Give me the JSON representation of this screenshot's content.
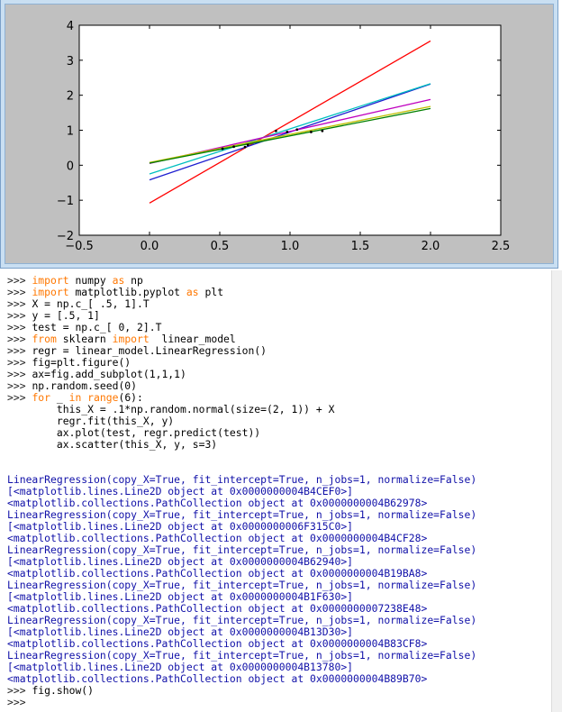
{
  "figure": {
    "yticks": [
      "4",
      "3",
      "2",
      "1",
      "0",
      "−1",
      "−2"
    ],
    "xticks": [
      "−0.5",
      "0.0",
      "0.5",
      "1.0",
      "1.5",
      "2.0",
      "2.5"
    ],
    "colors": {
      "blue": "#1f1fd0",
      "green": "#008000",
      "red": "#ff0000",
      "cyan": "#00bfbf",
      "magenta": "#bf00bf",
      "yellow": "#bfbf00"
    }
  },
  "chart_data": {
    "type": "line",
    "xlim": [
      -0.5,
      2.5
    ],
    "ylim": [
      -2,
      4
    ],
    "grid": false,
    "series": [
      {
        "color": "#ff0000",
        "x": [
          0,
          2
        ],
        "y": [
          -1.08,
          3.55
        ]
      },
      {
        "color": "#1f1fd0",
        "x": [
          0,
          2
        ],
        "y": [
          -0.42,
          2.32
        ]
      },
      {
        "color": "#00bfbf",
        "x": [
          0,
          2
        ],
        "y": [
          -0.25,
          2.33
        ]
      },
      {
        "color": "#bf00bf",
        "x": [
          0,
          2
        ],
        "y": [
          0.05,
          1.88
        ]
      },
      {
        "color": "#bfbf00",
        "x": [
          0,
          2
        ],
        "y": [
          0.08,
          1.68
        ]
      },
      {
        "color": "#008000",
        "x": [
          0,
          2
        ],
        "y": [
          0.06,
          1.62
        ]
      }
    ],
    "points": [
      {
        "x": 0.52,
        "y": 0.47
      },
      {
        "x": 0.6,
        "y": 0.53
      },
      {
        "x": 0.68,
        "y": 0.52
      },
      {
        "x": 0.7,
        "y": 0.58
      },
      {
        "x": 0.9,
        "y": 0.98
      },
      {
        "x": 0.98,
        "y": 0.95
      },
      {
        "x": 1.05,
        "y": 1.02
      },
      {
        "x": 1.15,
        "y": 0.95
      },
      {
        "x": 1.23,
        "y": 0.98
      }
    ]
  },
  "console": {
    "lines": [
      {
        "prompt": ">>> ",
        "parts": [
          {
            "t": "kw",
            "v": "import"
          },
          {
            "t": "code",
            "v": " numpy "
          },
          {
            "t": "kw",
            "v": "as"
          },
          {
            "t": "code",
            "v": " np"
          }
        ]
      },
      {
        "prompt": ">>> ",
        "parts": [
          {
            "t": "kw",
            "v": "import"
          },
          {
            "t": "code",
            "v": " matplotlib.pyplot "
          },
          {
            "t": "kw",
            "v": "as"
          },
          {
            "t": "code",
            "v": " plt"
          }
        ]
      },
      {
        "prompt": ">>> ",
        "parts": [
          {
            "t": "code",
            "v": "X = np.c_[ .5, 1].T"
          }
        ]
      },
      {
        "prompt": ">>> ",
        "parts": [
          {
            "t": "code",
            "v": "y = [.5, 1]"
          }
        ]
      },
      {
        "prompt": ">>> ",
        "parts": [
          {
            "t": "code",
            "v": "test = np.c_[ 0, 2].T"
          }
        ]
      },
      {
        "prompt": ">>> ",
        "parts": [
          {
            "t": "kw",
            "v": "from"
          },
          {
            "t": "code",
            "v": " sklearn "
          },
          {
            "t": "kw",
            "v": "import"
          },
          {
            "t": "code",
            "v": "  linear_model"
          }
        ]
      },
      {
        "prompt": ">>> ",
        "parts": [
          {
            "t": "code",
            "v": "regr = linear_model.LinearRegression()"
          }
        ]
      },
      {
        "prompt": ">>> ",
        "parts": [
          {
            "t": "code",
            "v": "fig=plt.figure()"
          }
        ]
      },
      {
        "prompt": ">>> ",
        "parts": [
          {
            "t": "code",
            "v": "ax=fig.add_subplot(1,1,1)"
          }
        ]
      },
      {
        "prompt": ">>> ",
        "parts": [
          {
            "t": "code",
            "v": "np.random.seed(0)"
          }
        ]
      },
      {
        "prompt": ">>> ",
        "parts": [
          {
            "t": "kw",
            "v": "for"
          },
          {
            "t": "code",
            "v": " _ "
          },
          {
            "t": "kw",
            "v": "in"
          },
          {
            "t": "code",
            "v": " "
          },
          {
            "t": "kw",
            "v": "range"
          },
          {
            "t": "code",
            "v": "(6):"
          }
        ]
      },
      {
        "prompt": "",
        "parts": [
          {
            "t": "code",
            "v": "        this_X = .1*np.random.normal(size=(2, 1)) + X"
          }
        ]
      },
      {
        "prompt": "",
        "parts": [
          {
            "t": "code",
            "v": "        regr.fit(this_X, y)"
          }
        ]
      },
      {
        "prompt": "",
        "parts": [
          {
            "t": "code",
            "v": "        ax.plot(test, regr.predict(test))"
          }
        ]
      },
      {
        "prompt": "",
        "parts": [
          {
            "t": "code",
            "v": "        ax.scatter(this_X, y, s=3)"
          }
        ]
      },
      {
        "prompt": "",
        "parts": []
      },
      {
        "prompt": "",
        "parts": []
      },
      {
        "prompt": "",
        "parts": [
          {
            "t": "out",
            "v": "LinearRegression(copy_X=True, fit_intercept=True, n_jobs=1, normalize=False)"
          }
        ]
      },
      {
        "prompt": "",
        "parts": [
          {
            "t": "out",
            "v": "[<matplotlib.lines.Line2D object at 0x0000000004B4CEF0>]"
          }
        ]
      },
      {
        "prompt": "",
        "parts": [
          {
            "t": "out",
            "v": "<matplotlib.collections.PathCollection object at 0x0000000004B62978>"
          }
        ]
      },
      {
        "prompt": "",
        "parts": [
          {
            "t": "out",
            "v": "LinearRegression(copy_X=True, fit_intercept=True, n_jobs=1, normalize=False)"
          }
        ]
      },
      {
        "prompt": "",
        "parts": [
          {
            "t": "out",
            "v": "[<matplotlib.lines.Line2D object at 0x0000000006F315C0>]"
          }
        ]
      },
      {
        "prompt": "",
        "parts": [
          {
            "t": "out",
            "v": "<matplotlib.collections.PathCollection object at 0x0000000004B4CF28>"
          }
        ]
      },
      {
        "prompt": "",
        "parts": [
          {
            "t": "out",
            "v": "LinearRegression(copy_X=True, fit_intercept=True, n_jobs=1, normalize=False)"
          }
        ]
      },
      {
        "prompt": "",
        "parts": [
          {
            "t": "out",
            "v": "[<matplotlib.lines.Line2D object at 0x0000000004B62940>]"
          }
        ]
      },
      {
        "prompt": "",
        "parts": [
          {
            "t": "out",
            "v": "<matplotlib.collections.PathCollection object at 0x0000000004B19BA8>"
          }
        ]
      },
      {
        "prompt": "",
        "parts": [
          {
            "t": "out",
            "v": "LinearRegression(copy_X=True, fit_intercept=True, n_jobs=1, normalize=False)"
          }
        ]
      },
      {
        "prompt": "",
        "parts": [
          {
            "t": "out",
            "v": "[<matplotlib.lines.Line2D object at 0x0000000004B1F630>]"
          }
        ]
      },
      {
        "prompt": "",
        "parts": [
          {
            "t": "out",
            "v": "<matplotlib.collections.PathCollection object at 0x0000000007238E48>"
          }
        ]
      },
      {
        "prompt": "",
        "parts": [
          {
            "t": "out",
            "v": "LinearRegression(copy_X=True, fit_intercept=True, n_jobs=1, normalize=False)"
          }
        ]
      },
      {
        "prompt": "",
        "parts": [
          {
            "t": "out",
            "v": "[<matplotlib.lines.Line2D object at 0x0000000004B13D30>]"
          }
        ]
      },
      {
        "prompt": "",
        "parts": [
          {
            "t": "out",
            "v": "<matplotlib.collections.PathCollection object at 0x0000000004B83CF8>"
          }
        ]
      },
      {
        "prompt": "",
        "parts": [
          {
            "t": "out",
            "v": "LinearRegression(copy_X=True, fit_intercept=True, n_jobs=1, normalize=False)"
          }
        ]
      },
      {
        "prompt": "",
        "parts": [
          {
            "t": "out",
            "v": "[<matplotlib.lines.Line2D object at 0x0000000004B13780>]"
          }
        ]
      },
      {
        "prompt": "",
        "parts": [
          {
            "t": "out",
            "v": "<matplotlib.collections.PathCollection object at 0x0000000004B89B70>"
          }
        ]
      },
      {
        "prompt": ">>> ",
        "parts": [
          {
            "t": "code",
            "v": "fig.show()"
          }
        ]
      },
      {
        "prompt": ">>> ",
        "parts": []
      }
    ]
  }
}
